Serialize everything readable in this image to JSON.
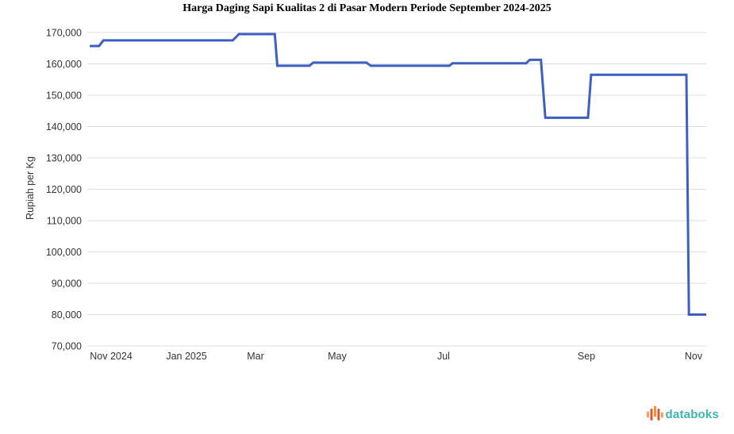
{
  "chart": {
    "title": "Harga Daging Sapi Kualitas 2 di Pasar Modern Periode September 2024-2025",
    "ylabel": "Rupiah per Kg"
  },
  "branding": {
    "logo_text": "databoks",
    "logo_text_color": "#3CB5AC",
    "logo_bar_colors": [
      "#F4A04C",
      "#E0523F",
      "#F6921E",
      "#E0523F",
      "#F4A04C"
    ]
  },
  "chart_data": {
    "type": "line",
    "title": "Harga Daging Sapi Kualitas 2 di Pasar Modern Periode September 2024-2025",
    "xlabel": "",
    "ylabel": "Rupiah per Kg",
    "ylim": [
      70000,
      170000
    ],
    "y_tick_step": 10000,
    "grid": true,
    "grid_color": "#DCDCDC",
    "legend": "none",
    "line_color": "#3D5FC4",
    "line_width": 3,
    "x_ticks": [
      {
        "label": "Nov 2024",
        "pos": 0.0385
      },
      {
        "label": "Jan 2025",
        "pos": 0.1603
      },
      {
        "label": "Mar",
        "pos": 0.2718
      },
      {
        "label": "May",
        "pos": 0.4038
      },
      {
        "label": "Jul",
        "pos": 0.5756
      },
      {
        "label": "Sep",
        "pos": 0.8064
      },
      {
        "label": "Nov",
        "pos": 0.9795
      }
    ],
    "points_format": "[x_fraction_of_time_axis, rupiah_per_kg]",
    "points": [
      [
        0.004,
        165700
      ],
      [
        0.019,
        165700
      ],
      [
        0.026,
        167500
      ],
      [
        0.235,
        167500
      ],
      [
        0.245,
        169500
      ],
      [
        0.303,
        169500
      ],
      [
        0.307,
        159400
      ],
      [
        0.359,
        159400
      ],
      [
        0.365,
        160400
      ],
      [
        0.451,
        160400
      ],
      [
        0.458,
        159400
      ],
      [
        0.585,
        159400
      ],
      [
        0.59,
        160200
      ],
      [
        0.709,
        160200
      ],
      [
        0.715,
        161300
      ],
      [
        0.733,
        161300
      ],
      [
        0.74,
        142800
      ],
      [
        0.809,
        142800
      ],
      [
        0.814,
        156500
      ],
      [
        0.968,
        156500
      ],
      [
        0.972,
        80000
      ],
      [
        1.0,
        80000
      ]
    ]
  }
}
